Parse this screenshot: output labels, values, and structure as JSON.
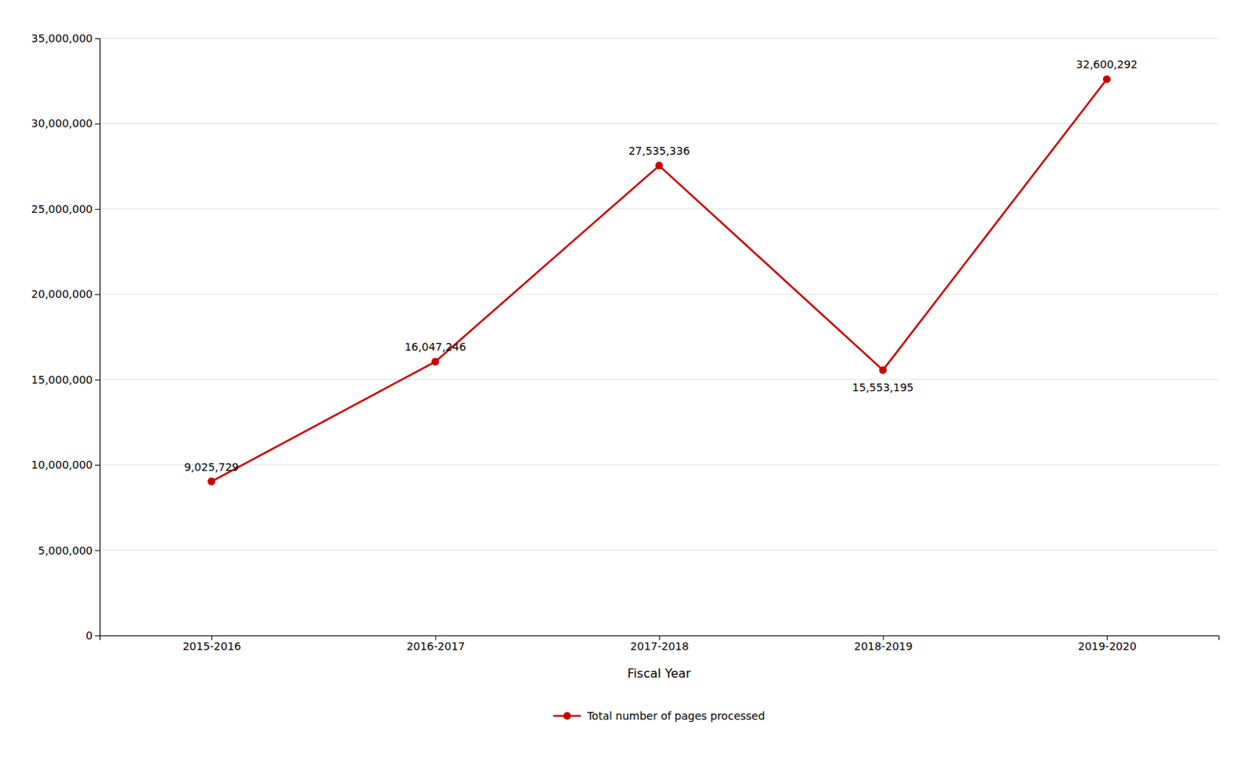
{
  "chart_data": {
    "type": "line",
    "categories": [
      "2015-2016",
      "2016-2017",
      "2017-2018",
      "2018-2019",
      "2019-2020"
    ],
    "series": [
      {
        "name": "Total number of pages processed",
        "color": "#CC0000",
        "marker": "circle",
        "values": [
          9025729,
          16047246,
          27535336,
          15553195,
          32600292
        ],
        "value_labels": [
          "9,025,729",
          "16,047,246",
          "27,535,336",
          "15,553,195",
          "32,600,292"
        ]
      }
    ],
    "xlabel": "Fiscal Year",
    "ylim": [
      0,
      35000000
    ],
    "yticks": [
      0,
      {
        "value": 5000000,
        "label": "5,000,000"
      },
      {
        "value": 10000000,
        "label": "10,000,000"
      },
      {
        "value": 15000000,
        "label": "15,000,000"
      },
      {
        "value": 20000000,
        "label": "20,000,000"
      },
      {
        "value": 25000000,
        "label": "25,000,000"
      },
      {
        "value": 30000000,
        "label": "30,000,000"
      },
      {
        "value": 35000000,
        "label": "35,000,000"
      }
    ],
    "grid": true,
    "legend": "bottom",
    "data_labels": true
  }
}
